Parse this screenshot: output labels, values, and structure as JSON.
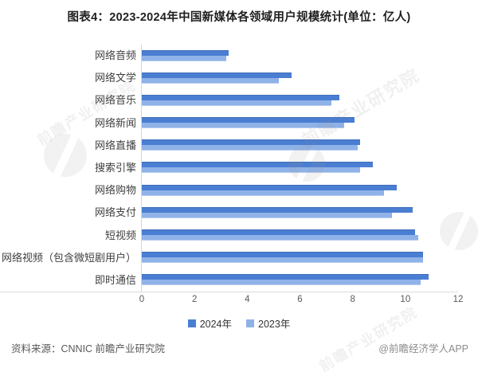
{
  "title": "图表4：2023-2024年中国新媒体各领域用户规模统计(单位：亿人)",
  "chart_data": {
    "type": "bar",
    "orientation": "horizontal",
    "title": "图表4：2023-2024年中国新媒体各领域用户规模统计(单位：亿人)",
    "unit": "亿人",
    "categories": [
      "网络音频",
      "网络文学",
      "网络音乐",
      "网络新闻",
      "网络直播",
      "搜索引擎",
      "网络购物",
      "网络支付",
      "短视频",
      "网络视频（包含微短剧用户）",
      "即时通信"
    ],
    "series": [
      {
        "name": "2024年",
        "color": "#4a7ed2",
        "values": [
          3.3,
          5.7,
          7.5,
          8.1,
          8.3,
          8.8,
          9.7,
          10.3,
          10.4,
          10.7,
          10.9
        ]
      },
      {
        "name": "2023年",
        "color": "#8fb2e8",
        "values": [
          3.2,
          5.2,
          7.2,
          7.7,
          8.2,
          8.3,
          9.2,
          9.5,
          10.5,
          10.7,
          10.6
        ]
      }
    ],
    "xlim": [
      0,
      12
    ],
    "x_ticks": [
      0,
      2,
      4,
      6,
      8,
      10,
      12
    ],
    "grid": false,
    "legend_position": "bottom"
  },
  "legend": {
    "items": [
      "2024年",
      "2023年"
    ]
  },
  "footer": {
    "source": "资料来源：CNNIC 前瞻产业研究院",
    "credit": "@前瞻经济学人APP"
  },
  "watermark": {
    "text": "前瞻产业研究院"
  }
}
